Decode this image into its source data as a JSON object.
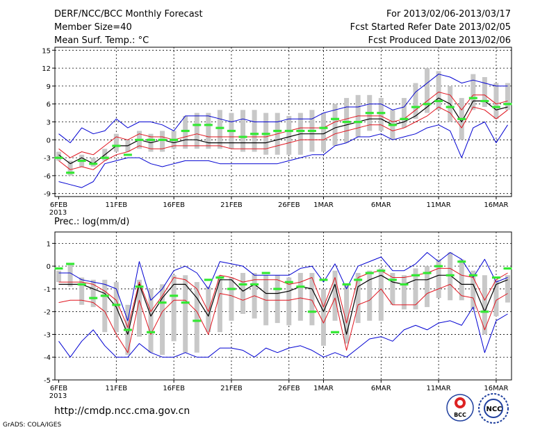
{
  "header": {
    "title": "DERF/NCC/BCC Monthly Forecast",
    "member_size": "Member Size=40",
    "variable": "Mean Surf. Temp.: °C",
    "period": "For 2013/02/06-2013/03/17",
    "started": "Fcst Started Refer Date 2013/02/05",
    "produced": "Fcst Produced Date 2013/02/06"
  },
  "footer": {
    "url": "http://cmdp.ncc.cma.gov.cn",
    "grads": "GrADS: COLA/IGES",
    "logo1_text": "BCC",
    "logo2_text": "NCC"
  },
  "colors": {
    "mean": "#000000",
    "inner": "#e0141e",
    "outer": "#0000d2",
    "box": "#c8c8c8",
    "obs": "#33e833"
  },
  "chart_data": [
    {
      "type": "line",
      "title": "Mean Surf. Temp.: °C",
      "x_tick_labels": [
        "6FEB",
        "11FEB",
        "16FEB",
        "21FEB",
        "26FEB",
        "1MAR",
        "6MAR",
        "11MAR",
        "16MAR"
      ],
      "x_tick_days": [
        1,
        6,
        11,
        16,
        21,
        24,
        29,
        34,
        39
      ],
      "year_label": "2013",
      "ylim": [
        -9.5,
        15.5
      ],
      "y_ticks": [
        -9,
        -6,
        -3,
        0,
        3,
        6,
        9,
        12,
        15
      ],
      "days": [
        1,
        2,
        3,
        4,
        5,
        6,
        7,
        8,
        9,
        10,
        11,
        12,
        13,
        14,
        15,
        16,
        17,
        18,
        19,
        20,
        21,
        22,
        23,
        24,
        25,
        26,
        27,
        28,
        29,
        30,
        31,
        32,
        33,
        34,
        35,
        36,
        37,
        38,
        39,
        40
      ],
      "series": [
        {
          "name": "max",
          "values": [
            1.0,
            -0.5,
            2.0,
            1.0,
            1.5,
            3.5,
            2.0,
            3.0,
            3.0,
            2.5,
            1.5,
            4.0,
            4.0,
            4.0,
            3.5,
            3.0,
            3.5,
            3.0,
            3.0,
            3.0,
            3.5,
            3.5,
            3.5,
            4.5,
            5.0,
            5.5,
            5.5,
            6.0,
            6.0,
            5.0,
            5.5,
            8.0,
            9.5,
            11.0,
            10.5,
            9.5,
            10.0,
            9.5,
            9.0,
            9.0
          ]
        },
        {
          "name": "upper",
          "values": [
            -1.5,
            -3.0,
            -2.0,
            -2.5,
            -1.0,
            0.5,
            0.0,
            1.0,
            0.5,
            0.5,
            0.0,
            0.5,
            1.0,
            0.5,
            0.5,
            0.5,
            0.5,
            0.5,
            0.5,
            1.0,
            1.5,
            2.0,
            2.0,
            2.0,
            3.0,
            3.5,
            4.0,
            4.0,
            4.0,
            3.0,
            3.5,
            5.0,
            6.5,
            8.0,
            7.5,
            5.0,
            7.5,
            7.5,
            6.0,
            6.5
          ]
        },
        {
          "name": "mean",
          "values": [
            -2.5,
            -4.0,
            -3.0,
            -4.0,
            -2.5,
            -1.0,
            -1.0,
            0.0,
            -0.5,
            0.0,
            -0.5,
            0.0,
            0.0,
            -0.5,
            -0.5,
            -0.5,
            -0.5,
            -0.5,
            -0.5,
            0.0,
            0.5,
            1.0,
            1.0,
            1.0,
            2.0,
            2.5,
            3.0,
            3.5,
            3.5,
            2.5,
            3.0,
            4.0,
            5.5,
            7.0,
            6.0,
            3.0,
            6.5,
            6.5,
            5.0,
            5.5
          ]
        },
        {
          "name": "lower",
          "values": [
            -3.5,
            -5.0,
            -4.5,
            -5.0,
            -3.5,
            -2.5,
            -2.0,
            -1.0,
            -1.5,
            -1.5,
            -1.0,
            -1.0,
            -1.0,
            -1.0,
            -1.0,
            -1.5,
            -1.5,
            -1.5,
            -1.5,
            -1.0,
            -0.5,
            0.0,
            0.0,
            0.0,
            1.0,
            1.5,
            2.0,
            2.5,
            2.5,
            1.5,
            2.0,
            3.0,
            4.0,
            5.5,
            4.5,
            2.0,
            5.5,
            5.0,
            3.5,
            5.0
          ]
        },
        {
          "name": "min",
          "values": [
            -7.0,
            -7.5,
            -8.0,
            -7.0,
            -4.0,
            -3.5,
            -3.0,
            -3.0,
            -4.0,
            -4.5,
            -4.0,
            -3.5,
            -3.5,
            -3.5,
            -4.0,
            -4.0,
            -4.0,
            -4.0,
            -4.0,
            -4.0,
            -3.5,
            -3.0,
            -2.5,
            -2.5,
            -1.0,
            -0.5,
            0.5,
            0.5,
            1.0,
            0.0,
            0.5,
            1.0,
            2.0,
            2.5,
            1.5,
            -3.0,
            2.0,
            3.0,
            -0.5,
            2.5
          ]
        },
        {
          "name": "box_low",
          "values": [
            -3.5,
            -6.0,
            -4.5,
            -4.5,
            -3.5,
            -2.0,
            -2.0,
            -1.5,
            -2.0,
            -2.0,
            -1.5,
            -1.5,
            -1.5,
            -1.5,
            -1.5,
            -1.5,
            -2.0,
            -2.0,
            -2.5,
            -2.5,
            -2.5,
            -2.5,
            -2.0,
            -2.0,
            -1.0,
            -0.5,
            0.5,
            1.5,
            1.5,
            0.0,
            2.0,
            3.5,
            4.5,
            5.0,
            3.0,
            0.0,
            5.0,
            5.5,
            3.5,
            5.0
          ]
        },
        {
          "name": "box_high",
          "values": [
            -2.0,
            -3.5,
            -2.5,
            -3.0,
            -1.5,
            1.0,
            0.0,
            1.5,
            1.0,
            1.5,
            1.5,
            4.0,
            4.5,
            4.5,
            5.0,
            4.5,
            5.0,
            5.0,
            4.5,
            4.5,
            4.0,
            4.5,
            5.0,
            4.5,
            6.0,
            7.0,
            7.5,
            7.5,
            7.0,
            5.0,
            7.0,
            9.5,
            12.0,
            11.5,
            9.0,
            7.0,
            11.0,
            10.5,
            9.5,
            9.5
          ]
        },
        {
          "name": "observed",
          "values": [
            -3.0,
            -5.5,
            -3.5,
            -4.0,
            -3.0,
            -1.0,
            -2.5,
            0.0,
            0.0,
            0.0,
            0.0,
            1.5,
            2.5,
            2.5,
            2.0,
            1.5,
            0.5,
            1.0,
            1.0,
            1.5,
            1.5,
            1.5,
            1.5,
            2.0,
            3.5,
            3.0,
            3.0,
            4.5,
            4.5,
            2.5,
            3.5,
            5.5,
            6.0,
            6.5,
            5.5,
            3.5,
            7.0,
            6.5,
            5.5,
            6.0
          ]
        }
      ]
    },
    {
      "type": "line",
      "title": "Prec.: log(mm/d)",
      "x_tick_labels": [
        "6FEB",
        "11FEB",
        "16FEB",
        "21FEB",
        "26FEB",
        "1MAR",
        "6MAR",
        "11MAR",
        "16MAR"
      ],
      "x_tick_days": [
        1,
        6,
        11,
        16,
        21,
        24,
        29,
        34,
        39
      ],
      "year_label": "2013",
      "ylim": [
        -5.0,
        1.5
      ],
      "y_ticks": [
        -5,
        -4,
        -3,
        -2,
        -1,
        0,
        1
      ],
      "days": [
        1,
        2,
        3,
        4,
        5,
        6,
        7,
        8,
        9,
        10,
        11,
        12,
        13,
        14,
        15,
        16,
        17,
        18,
        19,
        20,
        21,
        22,
        23,
        24,
        25,
        26,
        27,
        28,
        29,
        30,
        31,
        32,
        33,
        34,
        35,
        36,
        37,
        38,
        39,
        40
      ],
      "series": [
        {
          "name": "max",
          "values": [
            -0.3,
            -0.3,
            -0.6,
            -0.7,
            -0.8,
            -1.0,
            -2.4,
            0.2,
            -1.5,
            -1.0,
            -0.2,
            0.0,
            -0.3,
            -1.0,
            0.2,
            0.1,
            0.0,
            -0.4,
            -0.4,
            -0.4,
            -0.4,
            -0.1,
            0.0,
            -0.7,
            0.1,
            -1.0,
            0.0,
            0.2,
            0.4,
            -0.2,
            -0.2,
            0.1,
            0.6,
            0.2,
            0.6,
            0.3,
            -0.5,
            0.3,
            -0.7,
            -0.5
          ]
        },
        {
          "name": "upper",
          "values": [
            -0.7,
            -0.7,
            -0.7,
            -0.8,
            -1.1,
            -1.5,
            -2.7,
            -0.7,
            -2.0,
            -1.3,
            -0.5,
            -0.6,
            -1.0,
            -2.0,
            -0.4,
            -0.5,
            -0.7,
            -0.6,
            -0.6,
            -0.6,
            -0.8,
            -0.7,
            -0.5,
            -1.8,
            -0.5,
            -2.5,
            -0.5,
            -0.3,
            -0.2,
            -0.5,
            -0.5,
            -0.4,
            -0.3,
            -0.1,
            -0.1,
            -0.4,
            -0.5,
            -1.5,
            -0.6,
            -0.3
          ]
        },
        {
          "name": "mean",
          "values": [
            -0.8,
            -0.8,
            -0.8,
            -1.0,
            -1.2,
            -1.8,
            -3.0,
            -0.8,
            -2.2,
            -1.4,
            -0.8,
            -0.8,
            -1.4,
            -2.2,
            -0.6,
            -0.6,
            -1.1,
            -0.8,
            -1.2,
            -1.2,
            -1.1,
            -0.9,
            -1.0,
            -2.0,
            -0.8,
            -3.0,
            -0.9,
            -0.6,
            -0.4,
            -0.7,
            -0.8,
            -0.6,
            -0.6,
            -0.4,
            -0.4,
            -0.8,
            -0.8,
            -2.0,
            -0.8,
            -0.6
          ]
        },
        {
          "name": "lower",
          "values": [
            -1.6,
            -1.5,
            -1.5,
            -1.6,
            -2.0,
            -3.0,
            -3.8,
            -1.5,
            -3.0,
            -2.0,
            -1.5,
            -1.5,
            -2.0,
            -3.0,
            -1.2,
            -1.3,
            -1.5,
            -1.3,
            -1.5,
            -1.5,
            -1.5,
            -1.4,
            -1.5,
            -2.5,
            -1.4,
            -3.7,
            -1.7,
            -1.5,
            -1.0,
            -1.7,
            -1.7,
            -1.7,
            -1.2,
            -1.0,
            -0.8,
            -1.3,
            -1.4,
            -2.8,
            -1.5,
            -1.2
          ]
        },
        {
          "name": "min",
          "values": [
            -3.3,
            -4.0,
            -3.3,
            -2.8,
            -3.5,
            -4.0,
            -4.0,
            -3.4,
            -3.8,
            -4.0,
            -4.0,
            -3.8,
            -4.0,
            -4.0,
            -3.6,
            -3.6,
            -3.7,
            -4.0,
            -3.6,
            -3.8,
            -3.6,
            -3.5,
            -3.7,
            -4.0,
            -3.8,
            -4.0,
            -3.6,
            -3.2,
            -3.1,
            -3.3,
            -2.8,
            -2.6,
            -2.8,
            -2.5,
            -2.4,
            -2.6,
            -1.8,
            -3.8,
            -2.4,
            -2.1
          ]
        },
        {
          "name": "box_low",
          "values": [
            -0.7,
            -0.9,
            -1.7,
            -1.8,
            -2.9,
            -2.9,
            -3.9,
            -3.1,
            -3.8,
            -3.9,
            -3.3,
            -3.8,
            -3.8,
            -2.9,
            -2.9,
            -2.4,
            -2.1,
            -2.3,
            -2.6,
            -2.5,
            -2.6,
            -2.4,
            -2.6,
            -3.5,
            -2.4,
            -3.4,
            -2.5,
            -2.4,
            -2.4,
            -1.7,
            -1.9,
            -1.9,
            -1.8,
            -1.4,
            -1.5,
            -1.5,
            -1.9,
            -3.0,
            -2.2,
            -1.6
          ]
        },
        {
          "name": "box_high",
          "values": [
            -0.2,
            0.1,
            -0.5,
            -0.6,
            -0.6,
            -0.7,
            -1.7,
            -0.6,
            -1.0,
            -0.8,
            -0.4,
            -0.4,
            -0.7,
            -0.9,
            -0.4,
            -0.5,
            -0.3,
            -0.3,
            -0.4,
            -0.4,
            -0.5,
            -0.3,
            -0.3,
            -1.0,
            -0.2,
            -0.8,
            -0.3,
            -0.2,
            -0.1,
            -0.3,
            -0.4,
            -0.1,
            0.0,
            0.3,
            0.6,
            0.3,
            -0.2,
            -0.4,
            -0.6,
            -0.4
          ]
        },
        {
          "name": "observed",
          "values": [
            -0.1,
            0.1,
            -0.8,
            -1.4,
            -1.3,
            -1.7,
            -2.8,
            -0.9,
            -2.9,
            -1.6,
            -1.3,
            -1.6,
            -2.4,
            -0.6,
            -0.5,
            -1.0,
            -0.8,
            -0.8,
            -0.3,
            -1.0,
            -0.7,
            -0.9,
            -2.0,
            -0.6,
            -2.9,
            -0.8,
            -0.6,
            -0.3,
            -0.2,
            -0.6,
            -0.8,
            -0.4,
            -0.3,
            0.0,
            -0.4,
            0.2,
            -0.4,
            -2.0,
            -0.5,
            -0.1
          ]
        }
      ]
    }
  ]
}
